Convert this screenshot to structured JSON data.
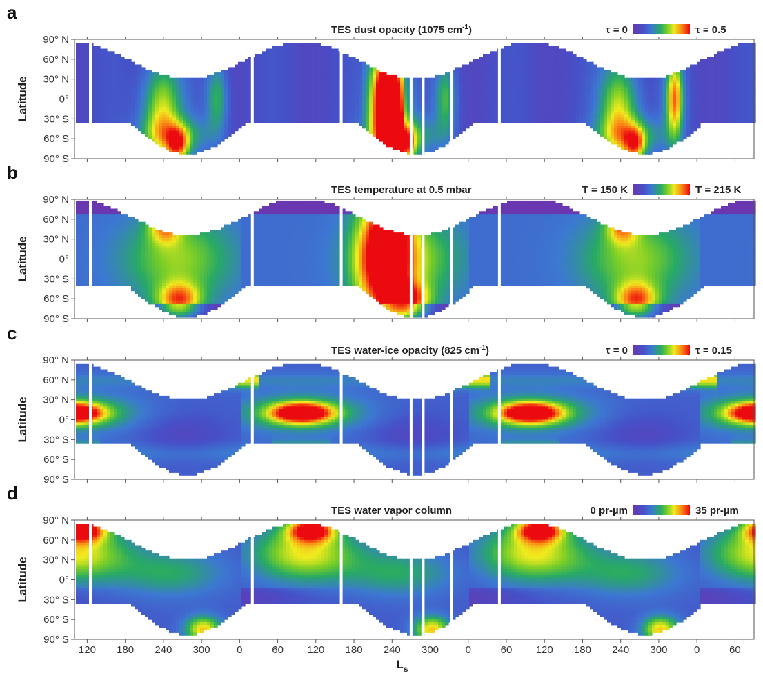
{
  "chart_data": {
    "type": "heatmap",
    "x_axis": {
      "label": "L",
      "label_sub": "s",
      "tick_labels": [
        "120",
        "180",
        "240",
        "300",
        "0",
        "60",
        "120",
        "180",
        "240",
        "300",
        "0",
        "60",
        "120",
        "180",
        "240",
        "300",
        "0",
        "60",
        "120"
      ],
      "range_deg_continuous": [
        100,
        1170
      ]
    },
    "y_axis": {
      "label": "Latitude",
      "tick_labels": [
        "90° N",
        "60° N",
        "30° N",
        "0°",
        "30° S",
        "60° S",
        "90° S"
      ],
      "range": [
        -90,
        90
      ]
    },
    "data_gaps_ls": [
      125,
      380,
      520,
      630,
      649,
      694,
      769
    ],
    "panels": [
      {
        "letter": "a",
        "title": "TES dust opacity (1075 cm",
        "title_sup": "-1",
        "title_end": ")",
        "colorbar": {
          "min_label": "τ = 0",
          "max_label": "τ = 0.5",
          "min": 0,
          "max": 0.5
        },
        "features": [
          {
            "ls_center": 243,
            "lat_center": -10,
            "value": 0.45
          },
          {
            "ls_center": 267,
            "lat_center": -75,
            "value": 0.5
          },
          {
            "ls_center": 590,
            "lat_center": 0,
            "value": 0.5
          },
          {
            "ls_center": 880,
            "lat_center": -60,
            "value": 0.4
          },
          {
            "ls_center": 940,
            "lat_center": 0,
            "value": 0.45
          }
        ]
      },
      {
        "letter": "b",
        "title": "TES temperature at 0.5 mbar",
        "title_sup": "",
        "title_end": "",
        "colorbar": {
          "min_label": "T = 150 K",
          "max_label": "T = 215 K",
          "min": 150,
          "max": 215
        },
        "features": [
          {
            "ls_center": 245,
            "lat_center": 50,
            "value": 205
          },
          {
            "ls_center": 250,
            "lat_center": -60,
            "value": 212
          },
          {
            "ls_center": 590,
            "lat_center": 0,
            "value": 215
          },
          {
            "ls_center": 900,
            "lat_center": 40,
            "value": 200
          },
          {
            "ls_center": 900,
            "lat_center": -60,
            "value": 210
          }
        ]
      },
      {
        "letter": "c",
        "title": "TES water-ice opacity (825 cm",
        "title_sup": "-1",
        "title_end": ")",
        "colorbar": {
          "min_label": "τ = 0",
          "max_label": "τ = 0.15",
          "min": 0,
          "max": 0.15
        },
        "features": [
          {
            "ls_center": 100,
            "lat_center": 10,
            "value": 0.15
          },
          {
            "ls_center": 455,
            "lat_center": 10,
            "value": 0.15
          },
          {
            "ls_center": 815,
            "lat_center": 10,
            "value": 0.15
          },
          {
            "ls_center": 1160,
            "lat_center": 10,
            "value": 0.14
          },
          {
            "ls_center": 520,
            "lat_center": 60,
            "value": 0.14
          }
        ]
      },
      {
        "letter": "d",
        "title": "TES water vapor column",
        "title_sup": "",
        "title_end": "",
        "colorbar": {
          "min_label": "0 pr-µm",
          "max_label": "35 pr-µm",
          "min": 0,
          "max": 35
        },
        "features": [
          {
            "ls_center": 470,
            "lat_center": 75,
            "value": 35
          },
          {
            "ls_center": 830,
            "lat_center": 75,
            "value": 35
          },
          {
            "ls_center": 105,
            "lat_center": 75,
            "value": 30
          },
          {
            "ls_center": 300,
            "lat_center": -75,
            "value": 25
          },
          {
            "ls_center": 655,
            "lat_center": -75,
            "value": 25
          }
        ]
      }
    ]
  }
}
